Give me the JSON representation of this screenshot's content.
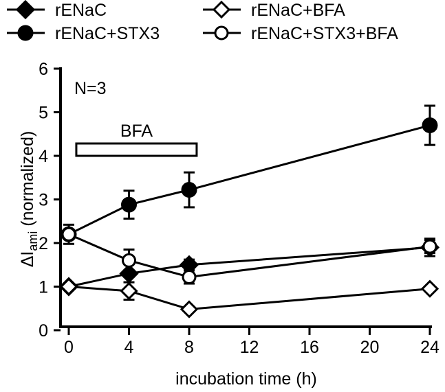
{
  "chart_data": {
    "type": "line",
    "xlabel": "incubation time (h)",
    "ylabel_main": "ΔI",
    "ylabel_sub": "ami",
    "ylabel_suffix": " (normalized)",
    "xlim": [
      0,
      24
    ],
    "ylim": [
      0,
      6
    ],
    "xticks": [
      0,
      4,
      8,
      12,
      16,
      20,
      24
    ],
    "yticks": [
      0,
      1,
      2,
      3,
      4,
      5,
      6
    ],
    "grid": false,
    "legend_position": "top",
    "annotations": {
      "n_label": "N=3",
      "bfa_label": "BFA",
      "bfa_bar_range": [
        0.5,
        8.5
      ]
    },
    "x": [
      0,
      4,
      8,
      24
    ],
    "series": [
      {
        "name": "rENaC",
        "marker": "diamond",
        "filled": true,
        "values": [
          1.0,
          1.3,
          1.5,
          1.9
        ],
        "errors": [
          0.05,
          0.08,
          0.12,
          0.2
        ]
      },
      {
        "name": "rENaC+BFA",
        "marker": "diamond",
        "filled": false,
        "values": [
          1.0,
          0.9,
          0.48,
          0.95
        ],
        "errors": [
          0.05,
          0.2,
          0.05,
          0.05
        ]
      },
      {
        "name": "rENaC+STX3",
        "marker": "circle",
        "filled": true,
        "values": [
          2.2,
          2.88,
          3.22,
          4.7
        ],
        "errors": [
          0.22,
          0.32,
          0.4,
          0.45
        ]
      },
      {
        "name": "rENaC+STX3+BFA",
        "marker": "circle",
        "filled": false,
        "values": [
          2.2,
          1.6,
          1.22,
          1.92
        ],
        "errors": [
          0.1,
          0.25,
          0.15,
          0.15
        ]
      }
    ]
  }
}
